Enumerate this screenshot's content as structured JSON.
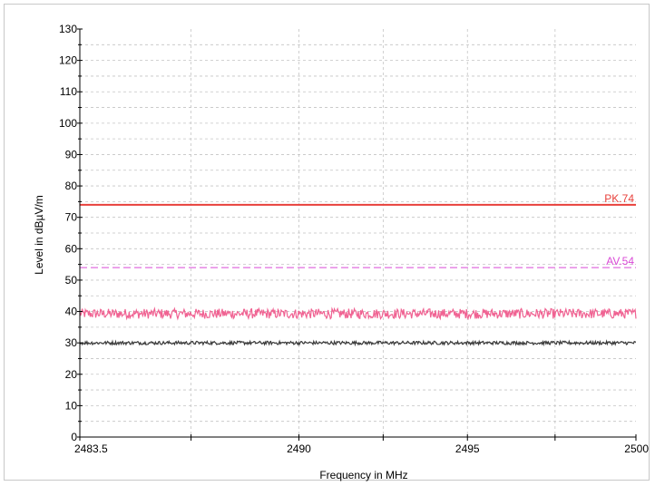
{
  "chart_data": {
    "type": "line",
    "title": "",
    "xlabel": "Frequency in MHz",
    "ylabel": "Level in dBµV/m",
    "xlim": [
      2483.5,
      2500
    ],
    "ylim": [
      0,
      130
    ],
    "x_ticks": [
      2483.5,
      2490,
      2495,
      2500
    ],
    "x_tick_labels": [
      "2483.5",
      "2490",
      "2495",
      "2500"
    ],
    "y_ticks": [
      0,
      10,
      20,
      30,
      40,
      50,
      60,
      70,
      80,
      90,
      100,
      110,
      120,
      130
    ],
    "y_tick_labels": [
      "0",
      "10",
      "20",
      "30",
      "40",
      "50",
      "60",
      "70",
      "80",
      "90",
      "100",
      "110",
      "120",
      "130"
    ],
    "grid": true,
    "limit_lines": [
      {
        "label": "PK.74",
        "value": 74,
        "color": "#e8413c",
        "style": "solid"
      },
      {
        "label": "AV.54",
        "value": 54,
        "color": "#d94ad6",
        "style": "dashed"
      }
    ],
    "series": [
      {
        "color": "#f06292",
        "mean": 39.3,
        "noise_amplitude": 1.6,
        "points": 700
      },
      {
        "color": "#3a3a3a",
        "mean": 30.0,
        "noise_amplitude": 0.55,
        "points": 700
      }
    ]
  }
}
